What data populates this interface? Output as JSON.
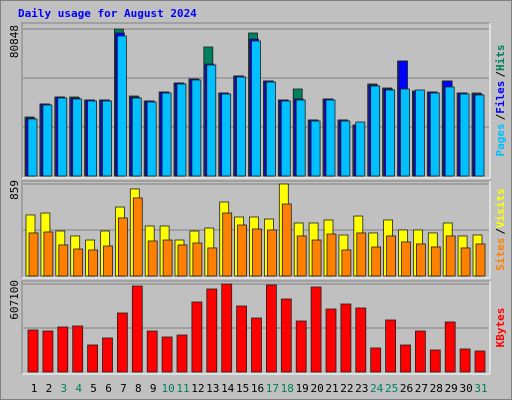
{
  "chart_data": {
    "type": "bar",
    "title": "Daily usage for August 2024",
    "separator": "/",
    "categories": [
      "1",
      "2",
      "3",
      "4",
      "5",
      "6",
      "7",
      "8",
      "9",
      "10",
      "11",
      "12",
      "13",
      "14",
      "15",
      "16",
      "17",
      "18",
      "19",
      "20",
      "21",
      "22",
      "23",
      "24",
      "25",
      "26",
      "27",
      "28",
      "29",
      "30",
      "31"
    ],
    "category_colors": [
      "#000000",
      "#000000",
      "#00805c",
      "#00805c",
      "#000000",
      "#000000",
      "#000000",
      "#000000",
      "#000000",
      "#00805c",
      "#00805c",
      "#000000",
      "#000000",
      "#000000",
      "#000000",
      "#000000",
      "#00805c",
      "#00805c",
      "#000000",
      "#000000",
      "#000000",
      "#000000",
      "#000000",
      "#00805c",
      "#00805c",
      "#000000",
      "#000000",
      "#000000",
      "#000000",
      "#000000",
      "#00805c"
    ],
    "panels": [
      {
        "ylim": [
          0,
          80848
        ],
        "yticks": [
          80848
        ],
        "series": [
          {
            "name": "Hits",
            "color": "#00805c",
            "values": [
              32450,
              39600,
              43450,
              43450,
              41800,
              41800,
              80848,
              44000,
              41250,
              46200,
              51150,
              53350,
              70950,
              45650,
              55000,
              78650,
              52250,
              41800,
              47850,
              30800,
              42350,
              30800,
              28050,
              50600,
              48400,
              63250,
              46750,
              46200,
              52250,
              45650,
              45650
            ]
          },
          {
            "name": "Files",
            "color": "#0000ff",
            "values": [
              31900,
              39600,
              43450,
              42900,
              41800,
              41800,
              78650,
              43450,
              41250,
              46200,
              51150,
              53350,
              61600,
              45650,
              55000,
              75350,
              52250,
              41800,
              42350,
              30800,
              42350,
              30800,
              28050,
              50050,
              47850,
              63250,
              46750,
              46200,
              52250,
              45650,
              45100
            ]
          },
          {
            "name": "Pages",
            "color": "#00c0ff",
            "values": [
              31350,
              39050,
              42900,
              42350,
              41250,
              41250,
              77000,
              42900,
              40700,
              45650,
              50600,
              52800,
              61050,
              45100,
              54450,
              74250,
              51700,
              41250,
              41800,
              30250,
              41800,
              30250,
              29700,
              49500,
              47300,
              47850,
              47300,
              45650,
              48950,
              45100,
              44550
            ]
          }
        ]
      },
      {
        "ylim": [
          0,
          859
        ],
        "yticks": [
          859
        ],
        "series": [
          {
            "name": "Visits",
            "color": "#ffff00",
            "values": [
              570,
              588,
              420,
              374,
              336,
              420,
              644,
              813,
              467,
              467,
              336,
              420,
              448,
              691,
              551,
              551,
              532,
              859,
              495,
              495,
              523,
              383,
              560,
              402,
              523,
              430,
              430,
              402,
              495,
              374,
              383
            ]
          },
          {
            "name": "Sites",
            "color": "#ff8000",
            "values": [
              402,
              411,
              290,
              252,
              243,
              280,
              542,
              729,
              327,
              336,
              290,
              308,
              262,
              588,
              476,
              439,
              430,
              672,
              374,
              336,
              392,
              243,
              402,
              271,
              374,
              318,
              299,
              271,
              374,
              262,
              299
            ]
          }
        ]
      },
      {
        "ylim": [
          0,
          607100
        ],
        "yticks": [
          607100
        ],
        "series": [
          {
            "name": "KBytes",
            "color": "#ff0000",
            "values": [
              289758,
              282859,
              310455,
              317354,
              186273,
              234566,
              407041,
              593314,
              282859,
              241465,
              255263,
              482930,
              572617,
              607100,
              455334,
              372546,
              600213,
              503627,
              351849,
              586415,
              434637,
              469132,
              441536,
              165576,
              358748,
              186273,
              282859,
              151778,
              344950,
              158677,
              144879
            ]
          }
        ]
      }
    ]
  }
}
